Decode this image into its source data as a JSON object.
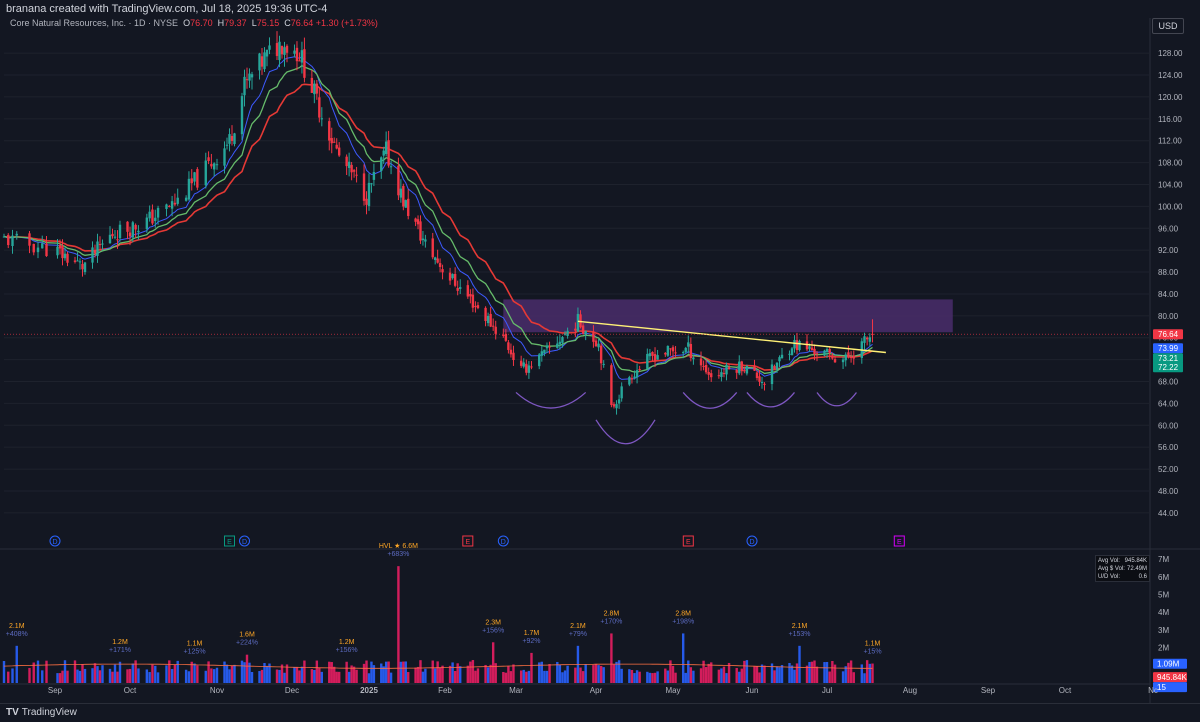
{
  "header": {
    "created_by": "branana created with TradingView.com, Jul 18, 2025 19:36 UTC-4",
    "symbol_line": "Core Natural Resources, Inc. · 1D · NYSE",
    "ohlc": {
      "o": "76.70",
      "h": "79.37",
      "l": "75.15",
      "c": "76.64",
      "chg": "+1.30 (+1.73%)"
    },
    "currency": "USD"
  },
  "footer": {
    "brand": "TradingView"
  },
  "volume_stats": {
    "avg_vol_label": "Avg Vol:",
    "avg_vol": "945.84K",
    "avg_dollar_label": "Avg $ Vol:",
    "avg_dollar": "72.49M",
    "ud_label": "U/D Vol:",
    "ud": "0.6"
  },
  "colors": {
    "up": "#26a69a",
    "down": "#f23645",
    "ema_red": "#e53935",
    "ema_blue": "#3d5afe",
    "ema_green": "#66bb6a",
    "zone": "#4a2d6b",
    "trendline": "#fff176",
    "arc": "#7e57c2",
    "bg": "#131722"
  },
  "chart_data": {
    "type": "candlestick",
    "title": "Core Natural Resources, Inc. · 1D · NYSE",
    "y_axis_ticks": [
      128,
      124,
      120,
      116,
      112,
      108,
      104,
      100,
      96,
      92,
      88,
      84,
      80,
      76,
      72,
      68,
      64,
      60,
      56,
      52,
      48,
      44
    ],
    "y_tick_labels": [
      "128.00",
      "124.00",
      "120.00",
      "116.00",
      "112.00",
      "108.00",
      "104.00",
      "100.00",
      "96.00",
      "92.00",
      "88.00",
      "84.00",
      "80.00",
      "76.00",
      "72.00",
      "68.00",
      "64.00",
      "60.00",
      "56.00",
      "52.00",
      "48.00",
      "44.00"
    ],
    "ylim": [
      40.5,
      131.5
    ],
    "x_labels": [
      "Sep",
      "Oct",
      "Nov",
      "Dec",
      "2025",
      "Feb",
      "Mar",
      "Apr",
      "May",
      "Jun",
      "Jul",
      "Aug",
      "Sep",
      "Oct",
      "Nc"
    ],
    "price_series": {
      "dates": [
        "2024-08-20",
        "2024-09-01",
        "2024-09-12",
        "2024-09-24",
        "2024-10-06",
        "2024-10-18",
        "2024-10-30",
        "2024-11-06",
        "2024-11-12",
        "2024-11-20",
        "2024-11-27",
        "2024-12-04",
        "2024-12-12",
        "2024-12-20",
        "2024-12-31",
        "2025-01-08",
        "2025-01-15",
        "2025-01-24",
        "2025-02-03",
        "2025-02-13",
        "2025-02-24",
        "2025-03-03",
        "2025-03-12",
        "2025-03-25",
        "2025-04-02",
        "2025-04-07",
        "2025-04-14",
        "2025-04-24",
        "2025-05-07",
        "2025-05-16",
        "2025-05-28",
        "2025-06-06",
        "2025-06-17",
        "2025-06-30",
        "2025-07-08",
        "2025-07-18"
      ],
      "close": [
        94,
        92,
        89,
        95,
        97,
        101,
        108,
        112,
        122,
        127,
        130,
        128,
        118,
        109,
        102,
        110,
        101,
        93,
        87,
        82,
        76,
        70,
        73,
        79,
        75,
        63,
        69,
        73,
        74,
        69,
        71,
        68,
        75,
        73,
        72,
        76.64
      ]
    },
    "ema_values": {
      "red": "76.64",
      "blue": "73.99",
      "green_1": "73.21",
      "green_2": "72.22"
    },
    "last_price": 76.64,
    "resistance_zone": {
      "from": 77,
      "to": 83
    },
    "trendline": {
      "start": {
        "date": "2025-03-25",
        "value": 79
      },
      "end": {
        "date": "2025-07-23",
        "value": 73.3
      }
    },
    "event_markers": [
      {
        "date": "2024-09-01",
        "label": "D"
      },
      {
        "date": "2024-11-06",
        "label": "E"
      },
      {
        "date": "2024-11-12",
        "label": "D"
      },
      {
        "date": "2025-02-10",
        "label": "E"
      },
      {
        "date": "2025-02-24",
        "label": "D"
      },
      {
        "date": "2025-05-07",
        "label": "E"
      },
      {
        "date": "2025-06-01",
        "label": "D"
      },
      {
        "date": "2025-07-28",
        "label": "E"
      }
    ],
    "volume_axis_ticks": [
      "7M",
      "6M",
      "5M",
      "4M",
      "3M",
      "2M",
      "1M"
    ],
    "volume_axis_values": [
      7,
      6,
      5,
      4,
      3,
      2,
      1
    ],
    "volume_markers": [
      "1.09M",
      "945.84K",
      "15"
    ],
    "volume_annotations": [
      {
        "date": "2024-08-23",
        "vol": "2.1M",
        "pct": "+408%",
        "value_m": 2.1
      },
      {
        "date": "2024-09-27",
        "vol": "1.2M",
        "pct": "+171%",
        "value_m": 1.2
      },
      {
        "date": "2024-10-24",
        "vol": "1.1M",
        "pct": "+125%",
        "value_m": 1.1
      },
      {
        "date": "2024-11-13",
        "vol": "1.6M",
        "pct": "+224%",
        "value_m": 1.6
      },
      {
        "date": "2024-12-23",
        "vol": "1.2M",
        "pct": "+156%",
        "value_m": 1.2
      },
      {
        "date": "2025-01-13",
        "vol": "HVL ★ 6.6M",
        "pct": "+683%",
        "value_m": 6.6
      },
      {
        "date": "2025-02-20",
        "vol": "2.3M",
        "pct": "+156%",
        "value_m": 2.3
      },
      {
        "date": "2025-03-07",
        "vol": "1.7M",
        "pct": "+92%",
        "value_m": 1.7
      },
      {
        "date": "2025-03-25",
        "vol": "2.1M",
        "pct": "+79%",
        "value_m": 2.1
      },
      {
        "date": "2025-04-07",
        "vol": "2.8M",
        "pct": "+170%",
        "value_m": 2.8
      },
      {
        "date": "2025-05-05",
        "vol": "2.8M",
        "pct": "+198%",
        "value_m": 2.8
      },
      {
        "date": "2025-06-20",
        "vol": "2.1M",
        "pct": "+153%",
        "value_m": 2.1
      },
      {
        "date": "2025-07-18",
        "vol": "1.1M",
        "pct": "+15%",
        "value_m": 1.1
      }
    ]
  }
}
